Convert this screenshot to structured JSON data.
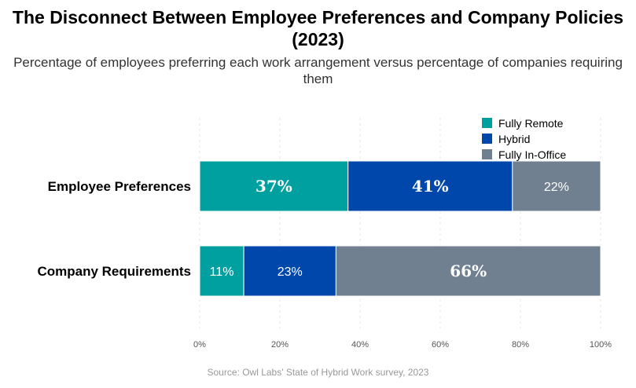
{
  "chart_data": {
    "type": "bar",
    "orientation": "horizontal",
    "stacked": true,
    "title": "The Disconnect Between Employee Preferences and Company Policies (2023)",
    "subtitle": "Percentage of employees preferring each work arrangement versus percentage of companies requiring them",
    "categories": [
      "Employee Preferences",
      "Company Requirements"
    ],
    "series": [
      {
        "name": "Fully Remote",
        "color": "#00a0a0",
        "values": [
          37,
          11
        ],
        "labels": [
          "37%",
          "11%"
        ]
      },
      {
        "name": "Hybrid",
        "color": "#0047ab",
        "values": [
          41,
          23
        ],
        "labels": [
          "41%",
          "23%"
        ]
      },
      {
        "name": "Fully In-Office",
        "color": "#708090",
        "values": [
          22,
          66
        ],
        "labels": [
          "22%",
          "66%"
        ]
      }
    ],
    "xlim": [
      0,
      100
    ],
    "xticks": [
      "0%",
      "20%",
      "40%",
      "60%",
      "80%",
      "100%"
    ],
    "grid": true,
    "legend": "top-right",
    "source": "Source: Owl Labs' State of Hybrid Work survey, 2023"
  }
}
